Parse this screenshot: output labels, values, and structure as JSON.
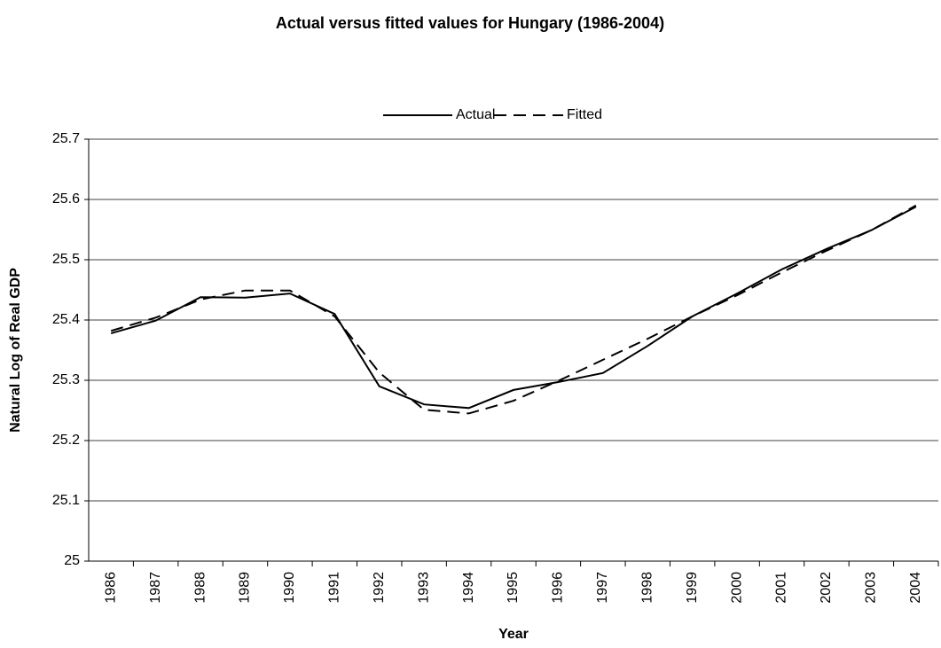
{
  "chart_data": {
    "type": "line",
    "title": "Actual versus fitted values for Hungary (1986-2004)",
    "x_label": "Year",
    "y_label": "Natural Log of Real GDP",
    "categories": [
      "1986",
      "1987",
      "1988",
      "1989",
      "1990",
      "1991",
      "1992",
      "1993",
      "1994",
      "1995",
      "1996",
      "1997",
      "1998",
      "1999",
      "2000",
      "2001",
      "2002",
      "2003",
      "2004"
    ],
    "series": [
      {
        "name": "Actual",
        "color": "#000000",
        "style": "solid",
        "values": [
          25.378,
          25.399,
          25.438,
          25.437,
          25.444,
          25.41,
          25.29,
          25.26,
          25.254,
          25.284,
          25.297,
          25.312,
          25.357,
          25.406,
          25.444,
          25.484,
          25.518,
          25.549,
          25.588
        ]
      },
      {
        "name": "Fitted",
        "color": "#000000",
        "style": "dashed",
        "values": [
          25.382,
          25.404,
          25.434,
          25.449,
          25.449,
          25.406,
          25.313,
          25.251,
          25.245,
          25.266,
          25.299,
          25.334,
          25.369,
          25.406,
          25.441,
          25.479,
          25.515,
          25.549,
          25.59
        ]
      }
    ],
    "ylim": [
      25,
      25.7
    ],
    "yticks": [
      25,
      25.1,
      25.2,
      25.3,
      25.4,
      25.5,
      25.6,
      25.7
    ],
    "grid": true,
    "legend": "top"
  }
}
